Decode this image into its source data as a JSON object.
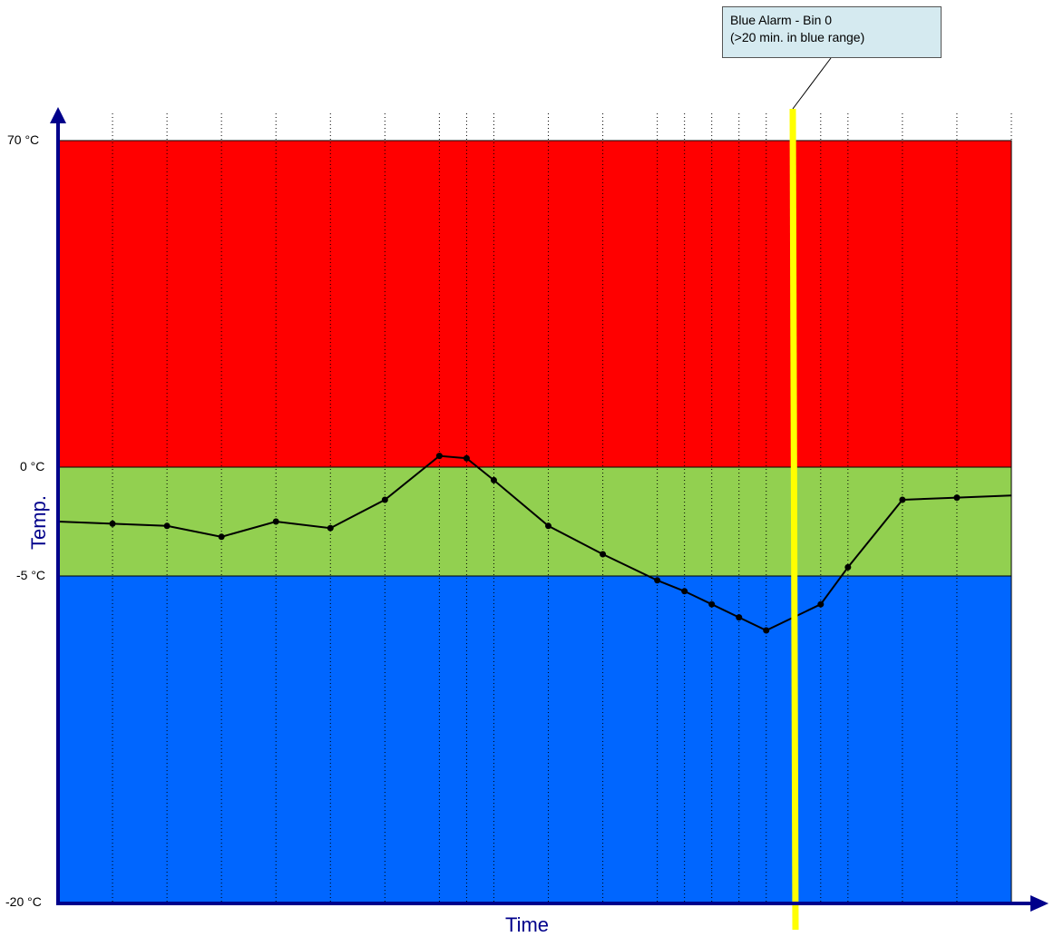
{
  "chart_data": {
    "type": "line",
    "title": "",
    "xlabel": "Time",
    "ylabel": "Temp.",
    "y_tick_labels": [
      "70 °C",
      "0 °C",
      "-5 °C",
      "-20 °C"
    ],
    "bands": [
      {
        "name": "red range",
        "from": 0,
        "to": 70,
        "color": "#ff0000"
      },
      {
        "name": "green range",
        "from": -5,
        "to": 0,
        "color": "#92d050"
      },
      {
        "name": "blue range",
        "from": -20,
        "to": -5,
        "color": "#0066ff"
      }
    ],
    "series": [
      {
        "x": [
          0,
          60,
          120,
          180,
          240,
          300,
          360,
          420,
          450,
          480,
          540,
          600,
          660,
          690,
          720,
          750,
          780,
          840,
          870,
          930,
          990,
          1050
        ],
        "values": [
          -2.5,
          -2.6,
          -2.7,
          -3.2,
          -2.5,
          -2.8,
          -1.5,
          2.4,
          1.9,
          -0.6,
          -2.7,
          -4.0,
          -5.2,
          -5.7,
          -6.3,
          -6.9,
          -7.5,
          -6.3,
          -4.6,
          -1.5,
          -1.4,
          -1.3
        ]
      }
    ],
    "callout": {
      "line1": "Blue Alarm - Bin 0",
      "line2": "(>20 min. in blue range)"
    },
    "marker_color": "#ffff00"
  }
}
